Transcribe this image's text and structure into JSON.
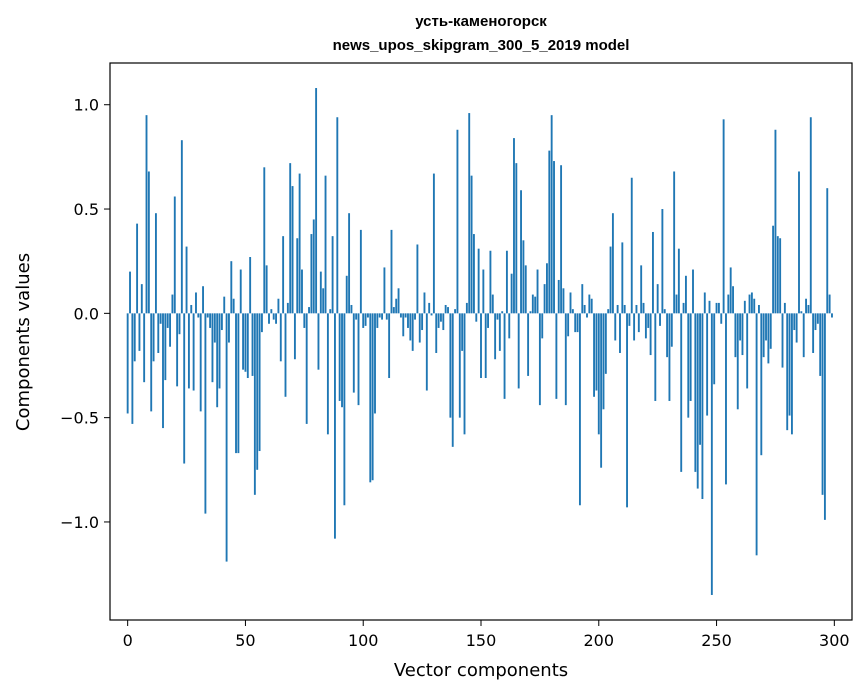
{
  "chart_data": {
    "type": "bar",
    "title": "усть-каменогорск",
    "subtitle": "news_upos_skipgram_300_5_2019 model",
    "xlabel": "Vector components",
    "ylabel": "Components values",
    "xlim": [
      -7.5,
      307.5
    ],
    "ylim": [
      -1.47,
      1.2
    ],
    "xticks": [
      0,
      50,
      100,
      150,
      200,
      250,
      300
    ],
    "xtick_labels": [
      "0",
      "50",
      "100",
      "150",
      "200",
      "250",
      "300"
    ],
    "yticks": [
      -1.0,
      -0.5,
      0.0,
      0.5,
      1.0
    ],
    "ytick_labels": [
      "−1.0",
      "−0.5",
      "0.0",
      "0.5",
      "1.0"
    ],
    "bar_color": "#1f77b4",
    "grid": false,
    "values": [
      -0.48,
      0.2,
      -0.53,
      -0.23,
      0.43,
      -0.18,
      0.14,
      -0.33,
      0.95,
      0.68,
      -0.47,
      -0.23,
      0.48,
      -0.19,
      -0.05,
      -0.55,
      -0.32,
      -0.07,
      -0.16,
      0.09,
      0.56,
      -0.35,
      -0.1,
      0.83,
      -0.72,
      0.32,
      -0.36,
      0.04,
      -0.37,
      0.1,
      -0.02,
      -0.47,
      0.13,
      -0.96,
      -0.02,
      -0.07,
      -0.33,
      -0.14,
      -0.45,
      -0.36,
      -0.08,
      0.08,
      -1.19,
      -0.14,
      0.25,
      0.07,
      -0.67,
      -0.67,
      0.21,
      -0.27,
      -0.28,
      -0.31,
      0.27,
      -0.3,
      -0.87,
      -0.75,
      -0.66,
      -0.09,
      0.7,
      0.23,
      -0.05,
      0.02,
      -0.03,
      -0.05,
      0.07,
      -0.23,
      0.37,
      -0.4,
      0.05,
      0.72,
      0.61,
      -0.22,
      0.36,
      0.67,
      0.21,
      -0.07,
      -0.53,
      0.03,
      0.38,
      0.45,
      1.08,
      -0.27,
      0.2,
      0.12,
      0.66,
      -0.58,
      0.02,
      0.37,
      -1.08,
      0.94,
      -0.42,
      -0.45,
      -0.92,
      0.18,
      0.48,
      0.04,
      -0.38,
      -0.03,
      -0.44,
      0.4,
      -0.07,
      -0.06,
      -0.02,
      -0.81,
      -0.8,
      -0.48,
      -0.07,
      -0.02,
      -0.03,
      0.22,
      -0.03,
      -0.31,
      0.4,
      0.03,
      0.07,
      0.12,
      -0.02,
      -0.11,
      -0.02,
      -0.07,
      -0.13,
      -0.18,
      -0.03,
      0.33,
      -0.14,
      -0.08,
      0.1,
      -0.37,
      0.05,
      -0.01,
      0.67,
      -0.19,
      -0.07,
      -0.04,
      -0.08,
      0.04,
      0.03,
      -0.5,
      -0.64,
      0.02,
      0.88,
      -0.5,
      -0.18,
      -0.58,
      0.05,
      0.96,
      0.66,
      0.38,
      -0.04,
      0.31,
      -0.31,
      0.21,
      -0.31,
      -0.07,
      0.3,
      0.09,
      -0.22,
      -0.03,
      -0.18,
      0.01,
      -0.41,
      0.3,
      -0.12,
      0.19,
      0.84,
      0.72,
      -0.36,
      0.59,
      0.35,
      0.23,
      -0.3,
      0.01,
      0.09,
      0.08,
      0.21,
      -0.44,
      -0.12,
      0.14,
      0.24,
      0.78,
      0.95,
      0.73,
      -0.41,
      0.16,
      0.71,
      0.12,
      -0.44,
      -0.11,
      0.1,
      0.02,
      -0.09,
      -0.09,
      -0.92,
      0.14,
      0.04,
      -0.02,
      0.09,
      0.07,
      -0.4,
      -0.37,
      -0.58,
      -0.74,
      -0.46,
      -0.29,
      0.02,
      0.32,
      0.48,
      -0.13,
      0.04,
      -0.19,
      0.34,
      0.04,
      -0.93,
      -0.06,
      0.65,
      -0.13,
      0.04,
      -0.09,
      0.23,
      0.05,
      -0.12,
      -0.07,
      -0.2,
      0.39,
      -0.42,
      0.14,
      -0.06,
      0.5,
      0.02,
      -0.21,
      -0.42,
      -0.16,
      0.68,
      0.09,
      0.31,
      -0.76,
      0.05,
      0.18,
      -0.5,
      -0.42,
      0.21,
      -0.76,
      -0.84,
      -0.63,
      -0.89,
      0.1,
      -0.49,
      0.06,
      -1.35,
      -0.34,
      0.05,
      0.05,
      -0.05,
      0.93,
      -0.82,
      0.09,
      0.22,
      0.13,
      -0.21,
      -0.46,
      -0.13,
      -0.2,
      0.06,
      -0.36,
      0.09,
      0.1,
      0.07,
      -1.16,
      0.04,
      -0.68,
      -0.21,
      -0.13,
      -0.24,
      -0.17,
      0.42,
      0.88,
      0.37,
      0.36,
      -0.26,
      0.05,
      -0.56,
      -0.49,
      -0.58,
      -0.08,
      -0.14,
      0.68,
      0.01,
      -0.21,
      0.07,
      0.04,
      0.94,
      -0.19,
      -0.08,
      -0.05,
      -0.3,
      -0.87,
      -0.99,
      0.6,
      0.09,
      -0.02
    ]
  }
}
